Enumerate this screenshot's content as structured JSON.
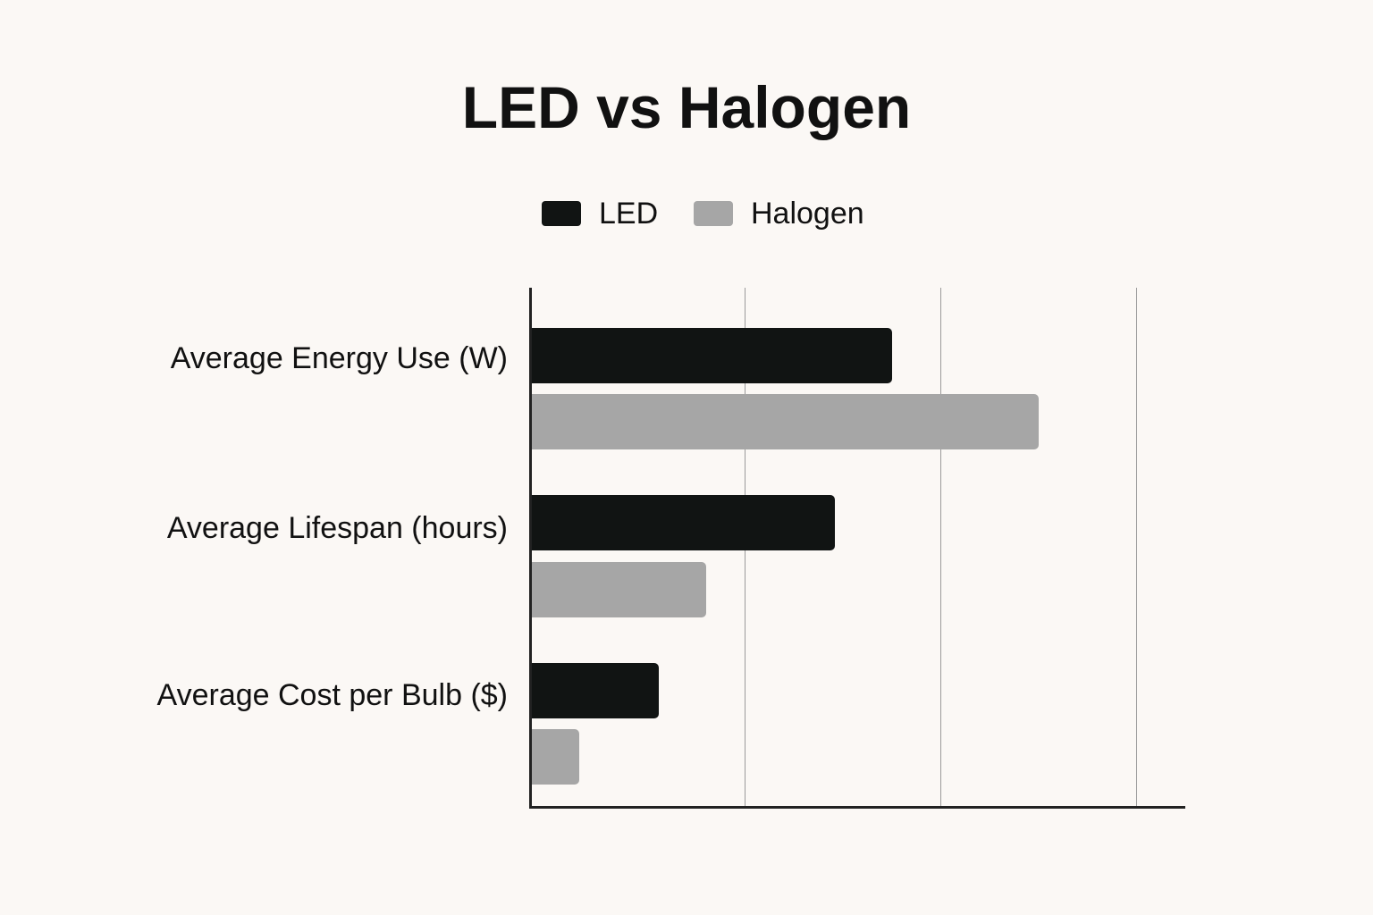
{
  "title": "LED vs Halogen",
  "legend": {
    "led": "LED",
    "halogen": "Halogen"
  },
  "colors": {
    "led": "#111413",
    "halogen": "#a6a6a6",
    "background": "#fbf8f5"
  },
  "categories": [
    "Average Energy Use (W)",
    "Average Lifespan (hours)",
    "Average Cost per Bulb ($)"
  ],
  "chart_data": {
    "type": "bar",
    "orientation": "horizontal",
    "title": "LED vs Halogen",
    "categories": [
      "Average Energy Use (W)",
      "Average Lifespan (hours)",
      "Average Cost per Bulb ($)"
    ],
    "series": [
      {
        "name": "LED",
        "values": [
          1.84,
          1.55,
          0.65
        ]
      },
      {
        "name": "Halogen",
        "values": [
          2.59,
          0.89,
          0.24
        ]
      }
    ],
    "xlabel": "",
    "ylabel": "",
    "xlim": [
      0,
      3.35
    ],
    "grid": true,
    "tick_labels_shown": false,
    "note": "No numeric axis labels are shown; values are relative lengths measured in gridline units.",
    "legend_position": "top"
  }
}
